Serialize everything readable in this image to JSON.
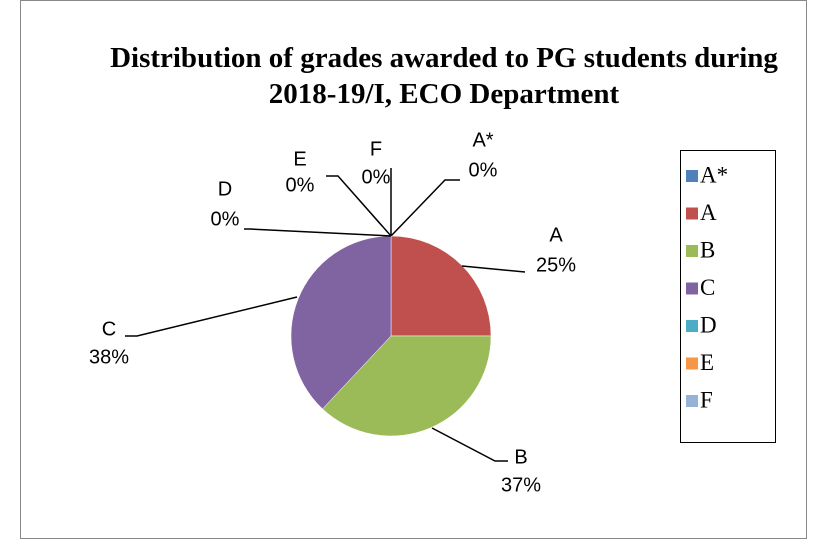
{
  "chart_data": {
    "type": "pie",
    "title": "Distribution of grades awarded to PG students during 2018-19/I, ECO Department",
    "categories": [
      "A*",
      "A",
      "B",
      "C",
      "D",
      "E",
      "F"
    ],
    "values": [
      0,
      25,
      37,
      38,
      0,
      0,
      0
    ],
    "value_labels": [
      "0%",
      "25%",
      "37%",
      "38%",
      "0%",
      "0%",
      "0%"
    ],
    "colors": [
      "#4f81bd",
      "#c0504d",
      "#9bbb59",
      "#8064a2",
      "#4bacc6",
      "#f79646",
      "#95b3d7"
    ],
    "legend": "right"
  }
}
